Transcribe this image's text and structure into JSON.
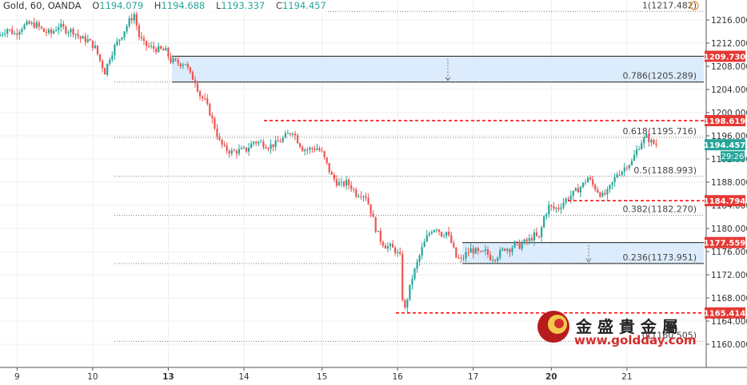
{
  "header": {
    "symbol": "Gold, 60, OANDA",
    "o_label": "O",
    "o_value": "1194.079",
    "h_label": "H",
    "h_value": "1194.688",
    "l_label": "L",
    "l_value": "1193.337",
    "c_label": "C",
    "c_value": "1194.457"
  },
  "watermark": {
    "cn_text": "金 盛 貴 金 屬",
    "url": "www.goldday.com"
  },
  "colors": {
    "up": "#26a69a",
    "down": "#ef5350",
    "level_line": "#ff0000",
    "zone_fill": "#d8eafc",
    "fib_line": "#808080",
    "grid": "#efefef"
  },
  "chart_data": {
    "type": "candlestick",
    "symbol": "Gold",
    "timeframe": "60",
    "source": "OANDA",
    "x_tick_labels": [
      "9",
      "10",
      "13",
      "14",
      "15",
      "16",
      "17",
      "20",
      "21"
    ],
    "y_ticks": [
      1160,
      1164,
      1168,
      1172,
      1176,
      1180,
      1184,
      1188,
      1192,
      1196,
      1200,
      1204,
      1208,
      1212,
      1216
    ],
    "y_tick_labels": [
      "1160.000",
      "1164.000",
      "1168.000",
      "1172.000",
      "1176.000",
      "1180.000",
      "1184.000",
      "1188.000",
      "1192.000",
      "1196.000",
      "1200.000",
      "1204.000",
      "1208.000",
      "1212.000",
      "1216.000"
    ],
    "ylim": [
      1158,
      1220
    ],
    "fib_levels": [
      {
        "label": "1(1217.482)",
        "price": 1217.482
      },
      {
        "label": "0.786(1205.289)",
        "price": 1205.289
      },
      {
        "label": "0.618(1195.716)",
        "price": 1195.716
      },
      {
        "label": "0.5(1188.993)",
        "price": 1188.993
      },
      {
        "label": "0.382(1182.270)",
        "price": 1182.27
      },
      {
        "label": "0.236(1173.951)",
        "price": 1173.951
      },
      {
        "label": "0(1160.505)",
        "price": 1160.505
      }
    ],
    "price_levels": [
      {
        "label": "1209.730",
        "price": 1209.73
      },
      {
        "label": "1198.619",
        "price": 1198.619
      },
      {
        "label": "1184.794",
        "price": 1184.794
      },
      {
        "label": "1177.559",
        "price": 1177.559
      },
      {
        "label": "1165.414",
        "price": 1165.414
      }
    ],
    "zones": [
      {
        "top": 1209.73,
        "bottom": 1205.289
      },
      {
        "top": 1177.559,
        "bottom": 1173.951
      }
    ],
    "last_price": {
      "label": "1194.457",
      "price": 1194.457
    },
    "countdown": "29:26",
    "path": [
      [
        0,
        1213.5
      ],
      [
        3,
        1214.5
      ],
      [
        6,
        1213.6
      ],
      [
        9,
        1214.8
      ],
      [
        12,
        1215.3
      ],
      [
        15,
        1215.1
      ],
      [
        18,
        1214.0
      ],
      [
        21,
        1213.7
      ],
      [
        24,
        1215.0
      ],
      [
        27,
        1214.3
      ],
      [
        30,
        1214.1
      ],
      [
        33,
        1212.8
      ],
      [
        36,
        1212.5
      ],
      [
        39,
        1211.2
      ],
      [
        41,
        1209.0
      ],
      [
        43,
        1207.0
      ],
      [
        45,
        1209.6
      ],
      [
        47,
        1211.4
      ],
      [
        50,
        1213.5
      ],
      [
        53,
        1215.8
      ],
      [
        55,
        1217.0
      ],
      [
        57,
        1213.2
      ],
      [
        59,
        1211.8
      ],
      [
        62,
        1211.2
      ],
      [
        65,
        1210.9
      ],
      [
        68,
        1210.6
      ],
      [
        70,
        1209.0
      ],
      [
        72,
        1208.7
      ],
      [
        74,
        1208.5
      ],
      [
        76,
        1208.6
      ],
      [
        78,
        1206.5
      ],
      [
        80,
        1205.5
      ],
      [
        82,
        1203.0
      ],
      [
        84,
        1202.0
      ],
      [
        86,
        1200.0
      ],
      [
        88,
        1197.5
      ],
      [
        90,
        1195.0
      ],
      [
        92,
        1193.8
      ],
      [
        95,
        1193.2
      ],
      [
        98,
        1193.4
      ],
      [
        101,
        1193.6
      ],
      [
        104,
        1195.0
      ],
      [
        107,
        1194.8
      ],
      [
        110,
        1194.2
      ],
      [
        113,
        1194.6
      ],
      [
        116,
        1195.5
      ],
      [
        118,
        1196.2
      ],
      [
        120,
        1196.9
      ],
      [
        122,
        1195.2
      ],
      [
        124,
        1193.8
      ],
      [
        126,
        1193.6
      ],
      [
        128,
        1193.8
      ],
      [
        130,
        1193.9
      ],
      [
        132,
        1193.0
      ],
      [
        134,
        1191.0
      ],
      [
        136,
        1189.0
      ],
      [
        138,
        1188.0
      ],
      [
        140,
        1187.5
      ],
      [
        142,
        1187.9
      ],
      [
        144,
        1187.2
      ],
      [
        146,
        1186.0
      ],
      [
        148,
        1186.1
      ],
      [
        150,
        1185.6
      ],
      [
        152,
        1183.0
      ],
      [
        154,
        1180.0
      ],
      [
        156,
        1178.0
      ],
      [
        158,
        1177.0
      ],
      [
        160,
        1176.8
      ],
      [
        162,
        1176.2
      ],
      [
        164,
        1175.0
      ],
      [
        165,
        1168.0
      ],
      [
        166,
        1166.0
      ],
      [
        167,
        1168.0
      ],
      [
        169,
        1171.5
      ],
      [
        171,
        1174.0
      ],
      [
        173,
        1176.5
      ],
      [
        175,
        1178.5
      ],
      [
        177,
        1179.8
      ],
      [
        179,
        1180.2
      ],
      [
        181,
        1179.0
      ],
      [
        183,
        1179.4
      ],
      [
        185,
        1177.5
      ],
      [
        187,
        1175.0
      ],
      [
        189,
        1174.5
      ],
      [
        191,
        1175.6
      ],
      [
        193,
        1176.3
      ],
      [
        195,
        1176.0
      ],
      [
        197,
        1175.5
      ],
      [
        199,
        1176.0
      ],
      [
        201,
        1175.0
      ],
      [
        203,
        1175.0
      ],
      [
        205,
        1175.8
      ],
      [
        207,
        1176.6
      ],
      [
        209,
        1176.5
      ],
      [
        211,
        1177.3
      ],
      [
        213,
        1177.0
      ],
      [
        215,
        1177.6
      ],
      [
        217,
        1178.0
      ],
      [
        219,
        1178.8
      ],
      [
        221,
        1178.2
      ],
      [
        223,
        1182.0
      ],
      [
        225,
        1183.8
      ],
      [
        227,
        1183.4
      ],
      [
        229,
        1183.6
      ],
      [
        231,
        1184.6
      ],
      [
        233,
        1185.4
      ],
      [
        235,
        1186.0
      ],
      [
        237,
        1186.8
      ],
      [
        239,
        1187.6
      ],
      [
        241,
        1188.8
      ],
      [
        243,
        1187.5
      ],
      [
        245,
        1186.5
      ],
      [
        247,
        1185.6
      ],
      [
        249,
        1186.2
      ],
      [
        251,
        1187.8
      ],
      [
        253,
        1189.5
      ],
      [
        255,
        1190.0
      ],
      [
        257,
        1191.0
      ],
      [
        259,
        1191.5
      ],
      [
        261,
        1193.5
      ],
      [
        263,
        1195.0
      ],
      [
        265,
        1195.8
      ],
      [
        267,
        1194.9
      ],
      [
        269,
        1194.457
      ]
    ]
  }
}
